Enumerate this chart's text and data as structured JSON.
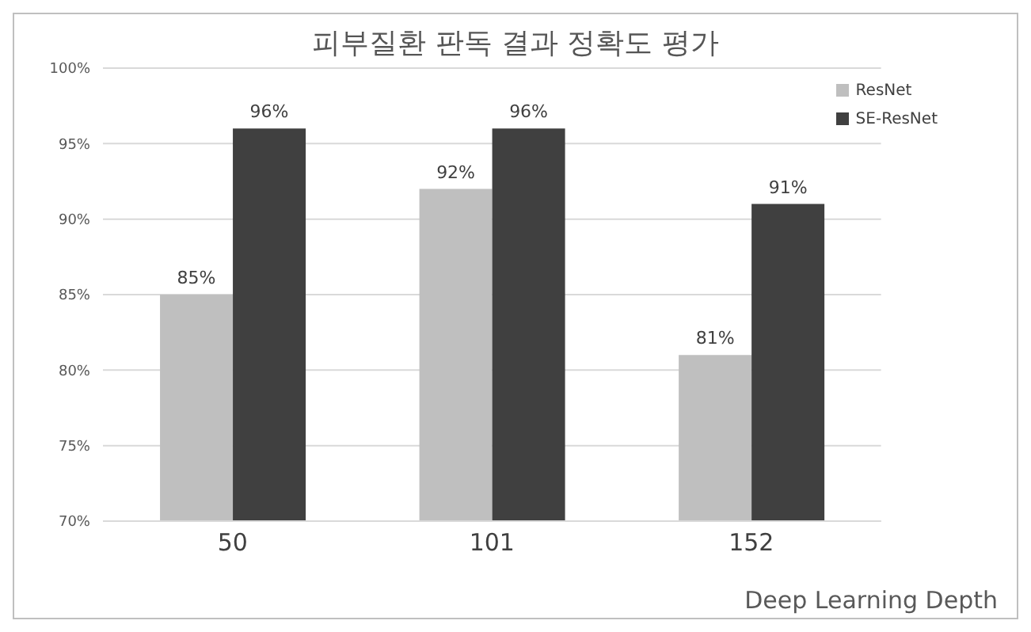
{
  "chart_data": {
    "type": "bar",
    "title": "피부질환 판독 결과 정확도 평가",
    "xlabel": "Deep Learning Depth",
    "categories": [
      "50",
      "101",
      "152"
    ],
    "series": [
      {
        "name": "ResNet",
        "color": "#bfbfbf",
        "values": [
          85,
          92,
          81
        ],
        "value_labels": [
          "85%",
          "92%",
          "81%"
        ]
      },
      {
        "name": "SE-ResNet",
        "color": "#404040",
        "values": [
          96,
          96,
          91
        ],
        "value_labels": [
          "96%",
          "96%",
          "91%"
        ]
      }
    ],
    "ylim": [
      70,
      100
    ],
    "yticks": [
      {
        "value": 70,
        "label": "70%"
      },
      {
        "value": 75,
        "label": "75%"
      },
      {
        "value": 80,
        "label": "80%"
      },
      {
        "value": 85,
        "label": "85%"
      },
      {
        "value": 90,
        "label": "90%"
      },
      {
        "value": 95,
        "label": "95%"
      },
      {
        "value": 100,
        "label": "100%"
      }
    ],
    "grid": "y",
    "legend": "top right"
  }
}
